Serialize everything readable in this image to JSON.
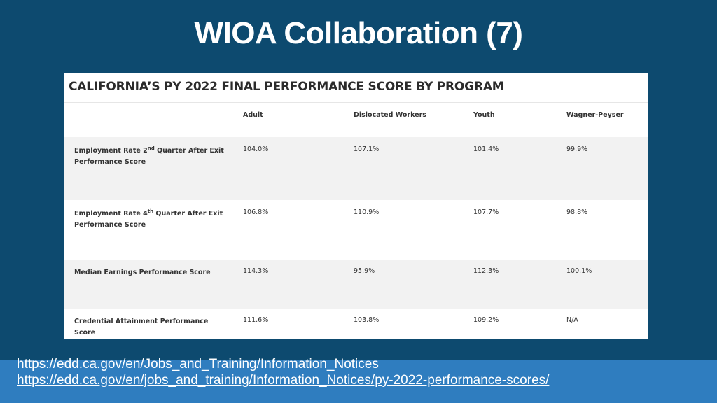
{
  "slide": {
    "title": "WIOA Collaboration (7)"
  },
  "table": {
    "heading": "CALIFORNIA’S PY 2022 FINAL PERFORMANCE SCORE BY PROGRAM",
    "columns": [
      "",
      "Adult",
      "Dislocated Workers",
      "Youth",
      "Wagner-Peyser"
    ],
    "rows": [
      {
        "label_parts": [
          "Employment Rate 2",
          "nd",
          " Quarter After Exit Performance Score"
        ],
        "values": [
          "104.0%",
          "107.1%",
          "101.4%",
          "99.9%"
        ]
      },
      {
        "label_parts": [
          "Employment Rate 4",
          "th",
          " Quarter After Exit Performance Score"
        ],
        "values": [
          "106.8%",
          "110.9%",
          "107.7%",
          "98.8%"
        ]
      },
      {
        "label": "Median Earnings Performance Score",
        "values": [
          "114.3%",
          "95.9%",
          "112.3%",
          "100.1%"
        ]
      },
      {
        "label": "Credential Attainment Performance Score",
        "values": [
          "111.6%",
          "103.8%",
          "109.2%",
          "N/A"
        ]
      }
    ]
  },
  "footer": {
    "links": [
      "https://edd.ca.gov/en/Jobs_and_Training/Information_Notices",
      "https://edd.ca.gov/en/jobs_and_training/Information_Notices/py-2022-performance-scores/"
    ]
  },
  "colors": {
    "background": "#0d4a6f",
    "footer_band": "#2f7dbf",
    "table_stripe": "#f2f2f2"
  }
}
